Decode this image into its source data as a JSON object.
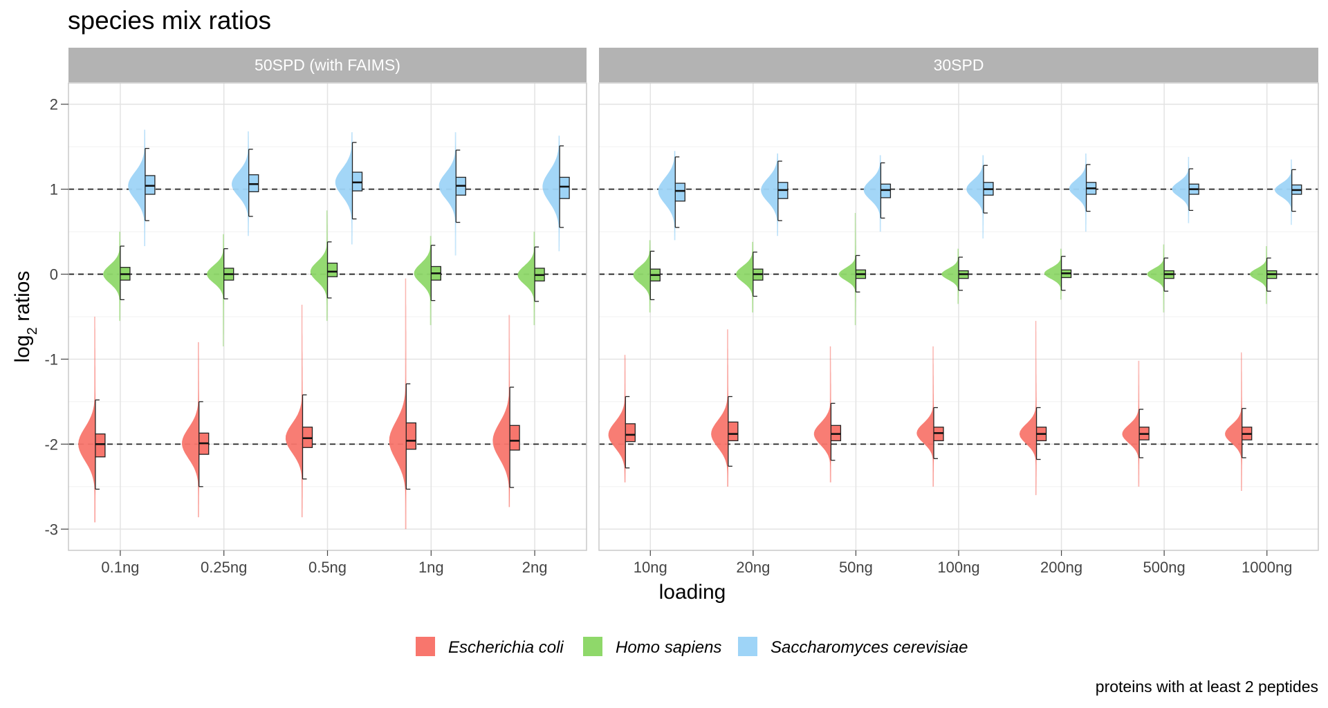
{
  "title": "species mix ratios",
  "caption": "proteins with at least 2 peptides",
  "chart_data": {
    "type": "raincloud",
    "xlabel": "loading",
    "ylabel_main": "log",
    "ylabel_sub": "2",
    "ylabel_rest": " ratios",
    "ylim": [
      -3.25,
      2.25
    ],
    "yticks": [
      -3,
      -2,
      -1,
      0,
      1,
      2
    ],
    "ytick_labels": [
      "-3",
      "-2",
      "-1",
      "0",
      "1",
      "2"
    ],
    "reference_lines": [
      1,
      0,
      -2
    ],
    "legend": [
      {
        "name": "Escherichia coli",
        "color": "#f8766d"
      },
      {
        "name": "Homo sapiens",
        "color": "#8fd86a"
      },
      {
        "name": "Saccharomyces cerevisiae",
        "color": "#9ed4f7"
      }
    ],
    "facets": [
      {
        "label": "50SPD (with FAIMS)",
        "categories": [
          "0.1ng",
          "0.25ng",
          "0.5ng",
          "1ng",
          "2ng"
        ],
        "series": [
          {
            "name": "Escherichia coli",
            "boxes": [
              {
                "q1": -2.15,
                "median": -2.0,
                "q3": -1.88,
                "whisker_low": -2.53,
                "whisker_high": -1.48,
                "tail_low": -2.92,
                "tail_high": -0.5
              },
              {
                "q1": -2.12,
                "median": -1.99,
                "q3": -1.87,
                "whisker_low": -2.5,
                "whisker_high": -1.5,
                "tail_low": -2.86,
                "tail_high": -0.8
              },
              {
                "q1": -2.04,
                "median": -1.93,
                "q3": -1.8,
                "whisker_low": -2.41,
                "whisker_high": -1.42,
                "tail_low": -2.86,
                "tail_high": -0.36
              },
              {
                "q1": -2.06,
                "median": -1.96,
                "q3": -1.75,
                "whisker_low": -2.53,
                "whisker_high": -1.29,
                "tail_low": -3.0,
                "tail_high": -0.05
              },
              {
                "q1": -2.07,
                "median": -1.96,
                "q3": -1.78,
                "whisker_low": -2.51,
                "whisker_high": -1.33,
                "tail_low": -2.74,
                "tail_high": -0.48
              }
            ]
          },
          {
            "name": "Homo sapiens",
            "boxes": [
              {
                "q1": -0.07,
                "median": 0.0,
                "q3": 0.08,
                "whisker_low": -0.3,
                "whisker_high": 0.33,
                "tail_low": -0.55,
                "tail_high": 0.5
              },
              {
                "q1": -0.07,
                "median": 0.0,
                "q3": 0.07,
                "whisker_low": -0.29,
                "whisker_high": 0.3,
                "tail_low": -0.85,
                "tail_high": 0.47
              },
              {
                "q1": -0.03,
                "median": 0.03,
                "q3": 0.13,
                "whisker_low": -0.28,
                "whisker_high": 0.38,
                "tail_low": -0.55,
                "tail_high": 0.75
              },
              {
                "q1": -0.07,
                "median": 0.01,
                "q3": 0.09,
                "whisker_low": -0.31,
                "whisker_high": 0.34,
                "tail_low": -0.6,
                "tail_high": 0.45
              },
              {
                "q1": -0.08,
                "median": -0.01,
                "q3": 0.07,
                "whisker_low": -0.32,
                "whisker_high": 0.32,
                "tail_low": -0.6,
                "tail_high": 0.5
              }
            ]
          },
          {
            "name": "Saccharomyces cerevisiae",
            "boxes": [
              {
                "q1": 0.94,
                "median": 1.04,
                "q3": 1.16,
                "whisker_low": 0.63,
                "whisker_high": 1.48,
                "tail_low": 0.33,
                "tail_high": 1.7
              },
              {
                "q1": 0.97,
                "median": 1.06,
                "q3": 1.17,
                "whisker_low": 0.68,
                "whisker_high": 1.47,
                "tail_low": 0.45,
                "tail_high": 1.68
              },
              {
                "q1": 0.98,
                "median": 1.08,
                "q3": 1.2,
                "whisker_low": 0.65,
                "whisker_high": 1.55,
                "tail_low": 0.35,
                "tail_high": 1.67
              },
              {
                "q1": 0.93,
                "median": 1.04,
                "q3": 1.14,
                "whisker_low": 0.61,
                "whisker_high": 1.46,
                "tail_low": 0.22,
                "tail_high": 1.67
              },
              {
                "q1": 0.89,
                "median": 1.03,
                "q3": 1.14,
                "whisker_low": 0.55,
                "whisker_high": 1.51,
                "tail_low": 0.27,
                "tail_high": 1.63
              }
            ]
          }
        ]
      },
      {
        "label": "30SPD",
        "categories": [
          "10ng",
          "20ng",
          "50ng",
          "100ng",
          "200ng",
          "500ng",
          "1000ng"
        ],
        "series": [
          {
            "name": "Escherichia coli",
            "boxes": [
              {
                "q1": -1.97,
                "median": -1.89,
                "q3": -1.76,
                "whisker_low": -2.28,
                "whisker_high": -1.44,
                "tail_low": -2.45,
                "tail_high": -0.95
              },
              {
                "q1": -1.96,
                "median": -1.88,
                "q3": -1.74,
                "whisker_low": -2.26,
                "whisker_high": -1.44,
                "tail_low": -2.5,
                "tail_high": -0.65
              },
              {
                "q1": -1.96,
                "median": -1.88,
                "q3": -1.78,
                "whisker_low": -2.19,
                "whisker_high": -1.52,
                "tail_low": -2.45,
                "tail_high": -0.85
              },
              {
                "q1": -1.96,
                "median": -1.87,
                "q3": -1.8,
                "whisker_low": -2.17,
                "whisker_high": -1.57,
                "tail_low": -2.5,
                "tail_high": -0.85
              },
              {
                "q1": -1.96,
                "median": -1.88,
                "q3": -1.8,
                "whisker_low": -2.18,
                "whisker_high": -1.57,
                "tail_low": -2.6,
                "tail_high": -0.55
              },
              {
                "q1": -1.95,
                "median": -1.88,
                "q3": -1.8,
                "whisker_low": -2.16,
                "whisker_high": -1.59,
                "tail_low": -2.5,
                "tail_high": -1.02
              },
              {
                "q1": -1.95,
                "median": -1.88,
                "q3": -1.8,
                "whisker_low": -2.16,
                "whisker_high": -1.58,
                "tail_low": -2.55,
                "tail_high": -0.92
              }
            ]
          },
          {
            "name": "Homo sapiens",
            "boxes": [
              {
                "q1": -0.08,
                "median": -0.01,
                "q3": 0.06,
                "whisker_low": -0.3,
                "whisker_high": 0.27,
                "tail_low": -0.45,
                "tail_high": 0.4
              },
              {
                "q1": -0.07,
                "median": 0.0,
                "q3": 0.06,
                "whisker_low": -0.26,
                "whisker_high": 0.26,
                "tail_low": -0.45,
                "tail_high": 0.38
              },
              {
                "q1": -0.05,
                "median": 0.0,
                "q3": 0.05,
                "whisker_low": -0.21,
                "whisker_high": 0.22,
                "tail_low": -0.6,
                "tail_high": 0.72
              },
              {
                "q1": -0.05,
                "median": 0.0,
                "q3": 0.04,
                "whisker_low": -0.19,
                "whisker_high": 0.2,
                "tail_low": -0.35,
                "tail_high": 0.3
              },
              {
                "q1": -0.04,
                "median": 0.01,
                "q3": 0.05,
                "whisker_low": -0.19,
                "whisker_high": 0.21,
                "tail_low": -0.3,
                "tail_high": 0.3
              },
              {
                "q1": -0.05,
                "median": 0.0,
                "q3": 0.04,
                "whisker_low": -0.2,
                "whisker_high": 0.19,
                "tail_low": -0.45,
                "tail_high": 0.35
              },
              {
                "q1": -0.05,
                "median": 0.0,
                "q3": 0.04,
                "whisker_low": -0.2,
                "whisker_high": 0.19,
                "tail_low": -0.35,
                "tail_high": 0.33
              }
            ]
          },
          {
            "name": "Saccharomyces cerevisiae",
            "boxes": [
              {
                "q1": 0.86,
                "median": 0.98,
                "q3": 1.07,
                "whisker_low": 0.55,
                "whisker_high": 1.38,
                "tail_low": 0.4,
                "tail_high": 1.45
              },
              {
                "q1": 0.89,
                "median": 0.99,
                "q3": 1.08,
                "whisker_low": 0.63,
                "whisker_high": 1.33,
                "tail_low": 0.45,
                "tail_high": 1.42
              },
              {
                "q1": 0.9,
                "median": 0.99,
                "q3": 1.06,
                "whisker_low": 0.66,
                "whisker_high": 1.31,
                "tail_low": 0.5,
                "tail_high": 1.4
              },
              {
                "q1": 0.93,
                "median": 1.0,
                "q3": 1.08,
                "whisker_low": 0.72,
                "whisker_high": 1.28,
                "tail_low": 0.42,
                "tail_high": 1.4
              },
              {
                "q1": 0.94,
                "median": 1.01,
                "q3": 1.08,
                "whisker_low": 0.74,
                "whisker_high": 1.29,
                "tail_low": 0.5,
                "tail_high": 1.42
              },
              {
                "q1": 0.94,
                "median": 1.0,
                "q3": 1.06,
                "whisker_low": 0.75,
                "whisker_high": 1.24,
                "tail_low": 0.6,
                "tail_high": 1.38
              },
              {
                "q1": 0.94,
                "median": 0.99,
                "q3": 1.05,
                "whisker_low": 0.74,
                "whisker_high": 1.23,
                "tail_low": 0.58,
                "tail_high": 1.35
              }
            ]
          }
        ]
      }
    ]
  }
}
